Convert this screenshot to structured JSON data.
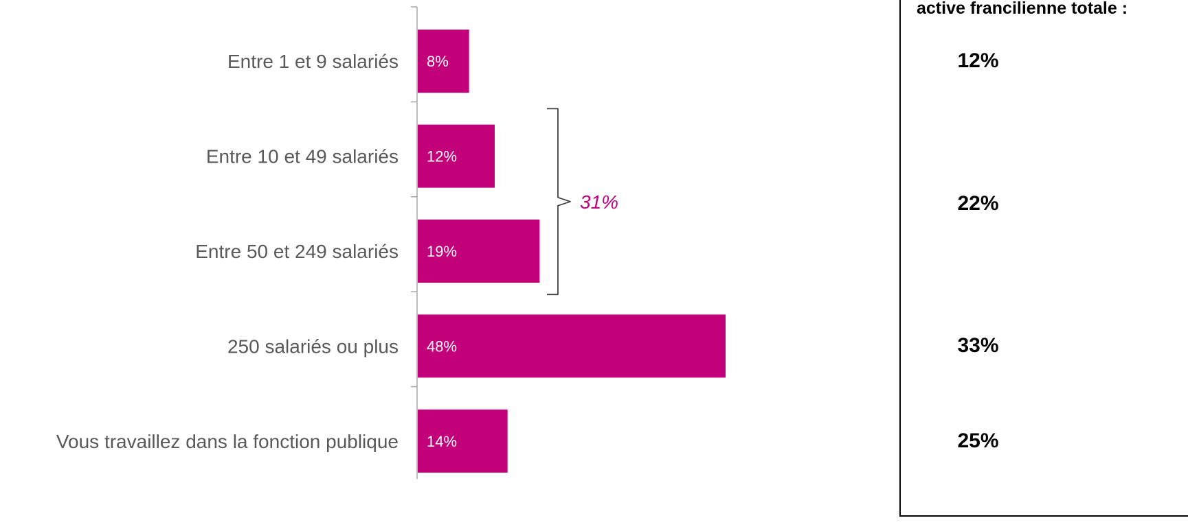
{
  "chart_data": {
    "type": "bar",
    "orientation": "horizontal",
    "categories": [
      "Entre 1 et 9 salariés",
      "Entre 10 et 49 salariés",
      "Entre 50 et 249 salariés",
      "250 salariés ou plus",
      "Vous travaillez dans la fonction publique"
    ],
    "values": [
      8,
      12,
      19,
      48,
      14
    ],
    "value_labels": [
      "8%",
      "12%",
      "19%",
      "48%",
      "14%"
    ],
    "xlim": [
      0,
      50
    ],
    "unit": "%",
    "bar_color": "#c2007a",
    "bracket": {
      "categories": [
        "Entre 10 et 49 salariés",
        "Entre 50 et 249 salariés"
      ],
      "label": "31%",
      "color": "#c2007a"
    },
    "legend": "none",
    "grid": false
  },
  "reference_panel": {
    "heading": "active francilienne totale :",
    "values": [
      "12%",
      "22%",
      "33%",
      "25%"
    ]
  }
}
